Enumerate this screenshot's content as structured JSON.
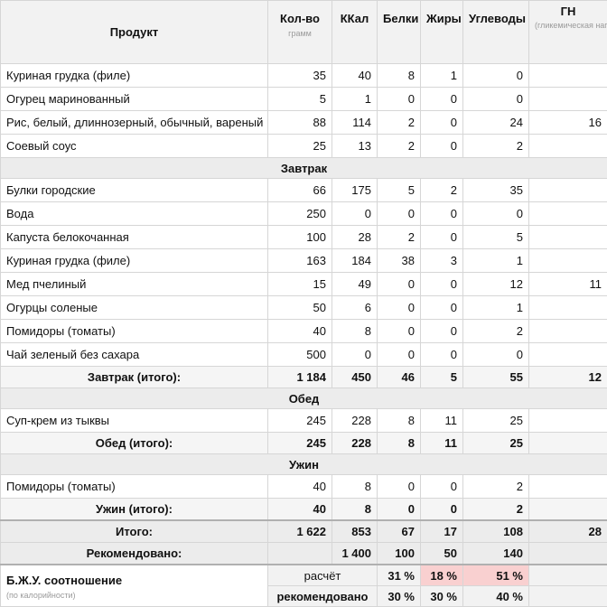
{
  "header": {
    "product": "Продукт",
    "qty": "Кол-во",
    "qty_unit": "грамм",
    "kcal": "ККал",
    "protein": "Белки",
    "fat": "Жиры",
    "carbs": "Углеводы",
    "gl": "ГН",
    "gl_note": "(гликемическая нагрузка)"
  },
  "top_items": [
    {
      "name": "Куриная грудка (филе)",
      "qty": "35",
      "kcal": "40",
      "p": "8",
      "f": "1",
      "c": "0",
      "gl": ""
    },
    {
      "name": "Огурец маринованный",
      "qty": "5",
      "kcal": "1",
      "p": "0",
      "f": "0",
      "c": "0",
      "gl": ""
    },
    {
      "name": "Рис, белый, длиннозерный, обычный, вареный",
      "qty": "88",
      "kcal": "114",
      "p": "2",
      "f": "0",
      "c": "24",
      "gl": "16"
    },
    {
      "name": "Соевый соус",
      "qty": "25",
      "kcal": "13",
      "p": "2",
      "f": "0",
      "c": "2",
      "gl": ""
    }
  ],
  "breakfast": {
    "title": "Завтрак",
    "items": [
      {
        "name": "Булки городские",
        "qty": "66",
        "kcal": "175",
        "p": "5",
        "f": "2",
        "c": "35",
        "gl": ""
      },
      {
        "name": "Вода",
        "qty": "250",
        "kcal": "0",
        "p": "0",
        "f": "0",
        "c": "0",
        "gl": ""
      },
      {
        "name": "Капуста белокочанная",
        "qty": "100",
        "kcal": "28",
        "p": "2",
        "f": "0",
        "c": "5",
        "gl": ""
      },
      {
        "name": "Куриная грудка (филе)",
        "qty": "163",
        "kcal": "184",
        "p": "38",
        "f": "3",
        "c": "1",
        "gl": ""
      },
      {
        "name": "Мед пчелиный",
        "qty": "15",
        "kcal": "49",
        "p": "0",
        "f": "0",
        "c": "12",
        "gl": "11"
      },
      {
        "name": "Огурцы соленые",
        "qty": "50",
        "kcal": "6",
        "p": "0",
        "f": "0",
        "c": "1",
        "gl": ""
      },
      {
        "name": "Помидоры (томаты)",
        "qty": "40",
        "kcal": "8",
        "p": "0",
        "f": "0",
        "c": "2",
        "gl": ""
      },
      {
        "name": "Чай зеленый без сахара",
        "qty": "500",
        "kcal": "0",
        "p": "0",
        "f": "0",
        "c": "0",
        "gl": ""
      }
    ],
    "total": {
      "label": "Завтрак (итого):",
      "qty": "1 184",
      "kcal": "450",
      "p": "46",
      "f": "5",
      "c": "55",
      "gl": "12"
    }
  },
  "lunch": {
    "title": "Обед",
    "items": [
      {
        "name": "Суп-крем из тыквы",
        "qty": "245",
        "kcal": "228",
        "p": "8",
        "f": "11",
        "c": "25",
        "gl": ""
      }
    ],
    "total": {
      "label": "Обед (итого):",
      "qty": "245",
      "kcal": "228",
      "p": "8",
      "f": "11",
      "c": "25",
      "gl": ""
    }
  },
  "dinner": {
    "title": "Ужин",
    "items": [
      {
        "name": "Помидоры (томаты)",
        "qty": "40",
        "kcal": "8",
        "p": "0",
        "f": "0",
        "c": "2",
        "gl": ""
      }
    ],
    "total": {
      "label": "Ужин (итого):",
      "qty": "40",
      "kcal": "8",
      "p": "0",
      "f": "0",
      "c": "2",
      "gl": ""
    }
  },
  "grand_total": {
    "label": "Итого:",
    "qty": "1 622",
    "kcal": "853",
    "p": "67",
    "f": "17",
    "c": "108",
    "gl": "28"
  },
  "recommended": {
    "label": "Рекомендовано:",
    "qty": "",
    "kcal": "1 400",
    "p": "100",
    "f": "50",
    "c": "140",
    "gl": ""
  },
  "ratio": {
    "title": "Б.Ж.У. соотношение",
    "note": "(по калорийности)",
    "calc_label": "расчёт",
    "calc": {
      "p": "31 %",
      "f": "18 %",
      "c": "51 %"
    },
    "rec_label": "рекомендовано",
    "rec": {
      "p": "30 %",
      "f": "30 %",
      "c": "40 %"
    },
    "highlight_color": "#f9d0d0"
  }
}
